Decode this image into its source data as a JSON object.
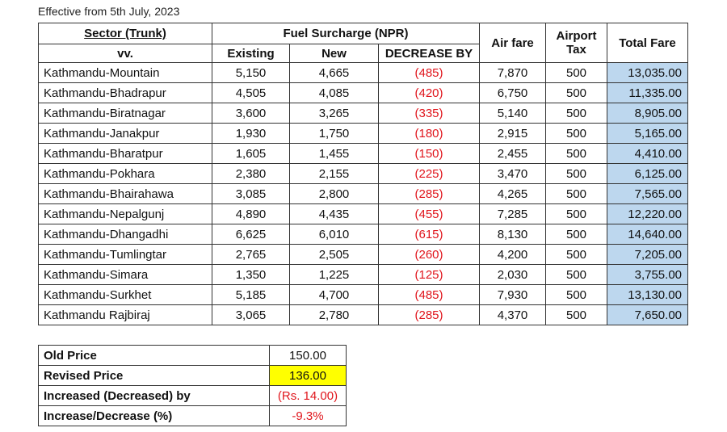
{
  "effective": "Effective from 5th July, 2023",
  "headers": {
    "sector": "Sector (Trunk)",
    "vv": "vv.",
    "fuel_surcharge": "Fuel Surcharge (NPR)",
    "existing": "Existing",
    "new": "New",
    "decrease_by": "DECREASE BY",
    "air_fare": "Air fare",
    "airport_tax_1": "Airport",
    "airport_tax_2": "Tax",
    "total_fare": "Total Fare"
  },
  "rows": [
    {
      "sector": "Kathmandu-Mountain",
      "existing": "5,150",
      "new": "4,665",
      "decrease": "(485)",
      "air_fare": "7,870",
      "tax": "500",
      "total": "13,035.00"
    },
    {
      "sector": "Kathmandu-Bhadrapur",
      "existing": "4,505",
      "new": "4,085",
      "decrease": "(420)",
      "air_fare": "6,750",
      "tax": "500",
      "total": "11,335.00"
    },
    {
      "sector": "Kathmandu-Biratnagar",
      "existing": "3,600",
      "new": "3,265",
      "decrease": "(335)",
      "air_fare": "5,140",
      "tax": "500",
      "total": "8,905.00"
    },
    {
      "sector": "Kathmandu-Janakpur",
      "existing": "1,930",
      "new": "1,750",
      "decrease": "(180)",
      "air_fare": "2,915",
      "tax": "500",
      "total": "5,165.00"
    },
    {
      "sector": "Kathmandu-Bharatpur",
      "existing": "1,605",
      "new": "1,455",
      "decrease": "(150)",
      "air_fare": "2,455",
      "tax": "500",
      "total": "4,410.00"
    },
    {
      "sector": "Kathmandu-Pokhara",
      "existing": "2,380",
      "new": "2,155",
      "decrease": "(225)",
      "air_fare": "3,470",
      "tax": "500",
      "total": "6,125.00"
    },
    {
      "sector": "Kathmandu-Bhairahawa",
      "existing": "3,085",
      "new": "2,800",
      "decrease": "(285)",
      "air_fare": "4,265",
      "tax": "500",
      "total": "7,565.00"
    },
    {
      "sector": "Kathmandu-Nepalgunj",
      "existing": "4,890",
      "new": "4,435",
      "decrease": "(455)",
      "air_fare": "7,285",
      "tax": "500",
      "total": "12,220.00"
    },
    {
      "sector": "Kathmandu-Dhangadhi",
      "existing": "6,625",
      "new": "6,010",
      "decrease": "(615)",
      "air_fare": "8,130",
      "tax": "500",
      "total": "14,640.00"
    },
    {
      "sector": "Kathmandu-Tumlingtar",
      "existing": "2,765",
      "new": "2,505",
      "decrease": "(260)",
      "air_fare": "4,200",
      "tax": "500",
      "total": "7,205.00"
    },
    {
      "sector": "Kathmandu-Simara",
      "existing": "1,350",
      "new": "1,225",
      "decrease": "(125)",
      "air_fare": "2,030",
      "tax": "500",
      "total": "3,755.00"
    },
    {
      "sector": "Kathmandu-Surkhet",
      "existing": "5,185",
      "new": "4,700",
      "decrease": "(485)",
      "air_fare": "7,930",
      "tax": "500",
      "total": "13,130.00"
    },
    {
      "sector": "Kathmandu Rajbiraj",
      "existing": "3,065",
      "new": "2,780",
      "decrease": "(285)",
      "air_fare": "4,370",
      "tax": "500",
      "total": "7,650.00"
    }
  ],
  "summary": [
    {
      "label": "Old Price",
      "value": "150.00",
      "style": ""
    },
    {
      "label": "Revised Price",
      "value": "136.00",
      "style": "hl"
    },
    {
      "label": "Increased (Decreased) by",
      "value": "(Rs. 14.00)",
      "style": "red"
    },
    {
      "label": "Increase/Decrease (%)",
      "value": "-9.3%",
      "style": "red"
    }
  ],
  "colors": {
    "total_bg": "#bdd7ee",
    "highlight": "#ffff00",
    "decrease_text": "#e0141b"
  }
}
